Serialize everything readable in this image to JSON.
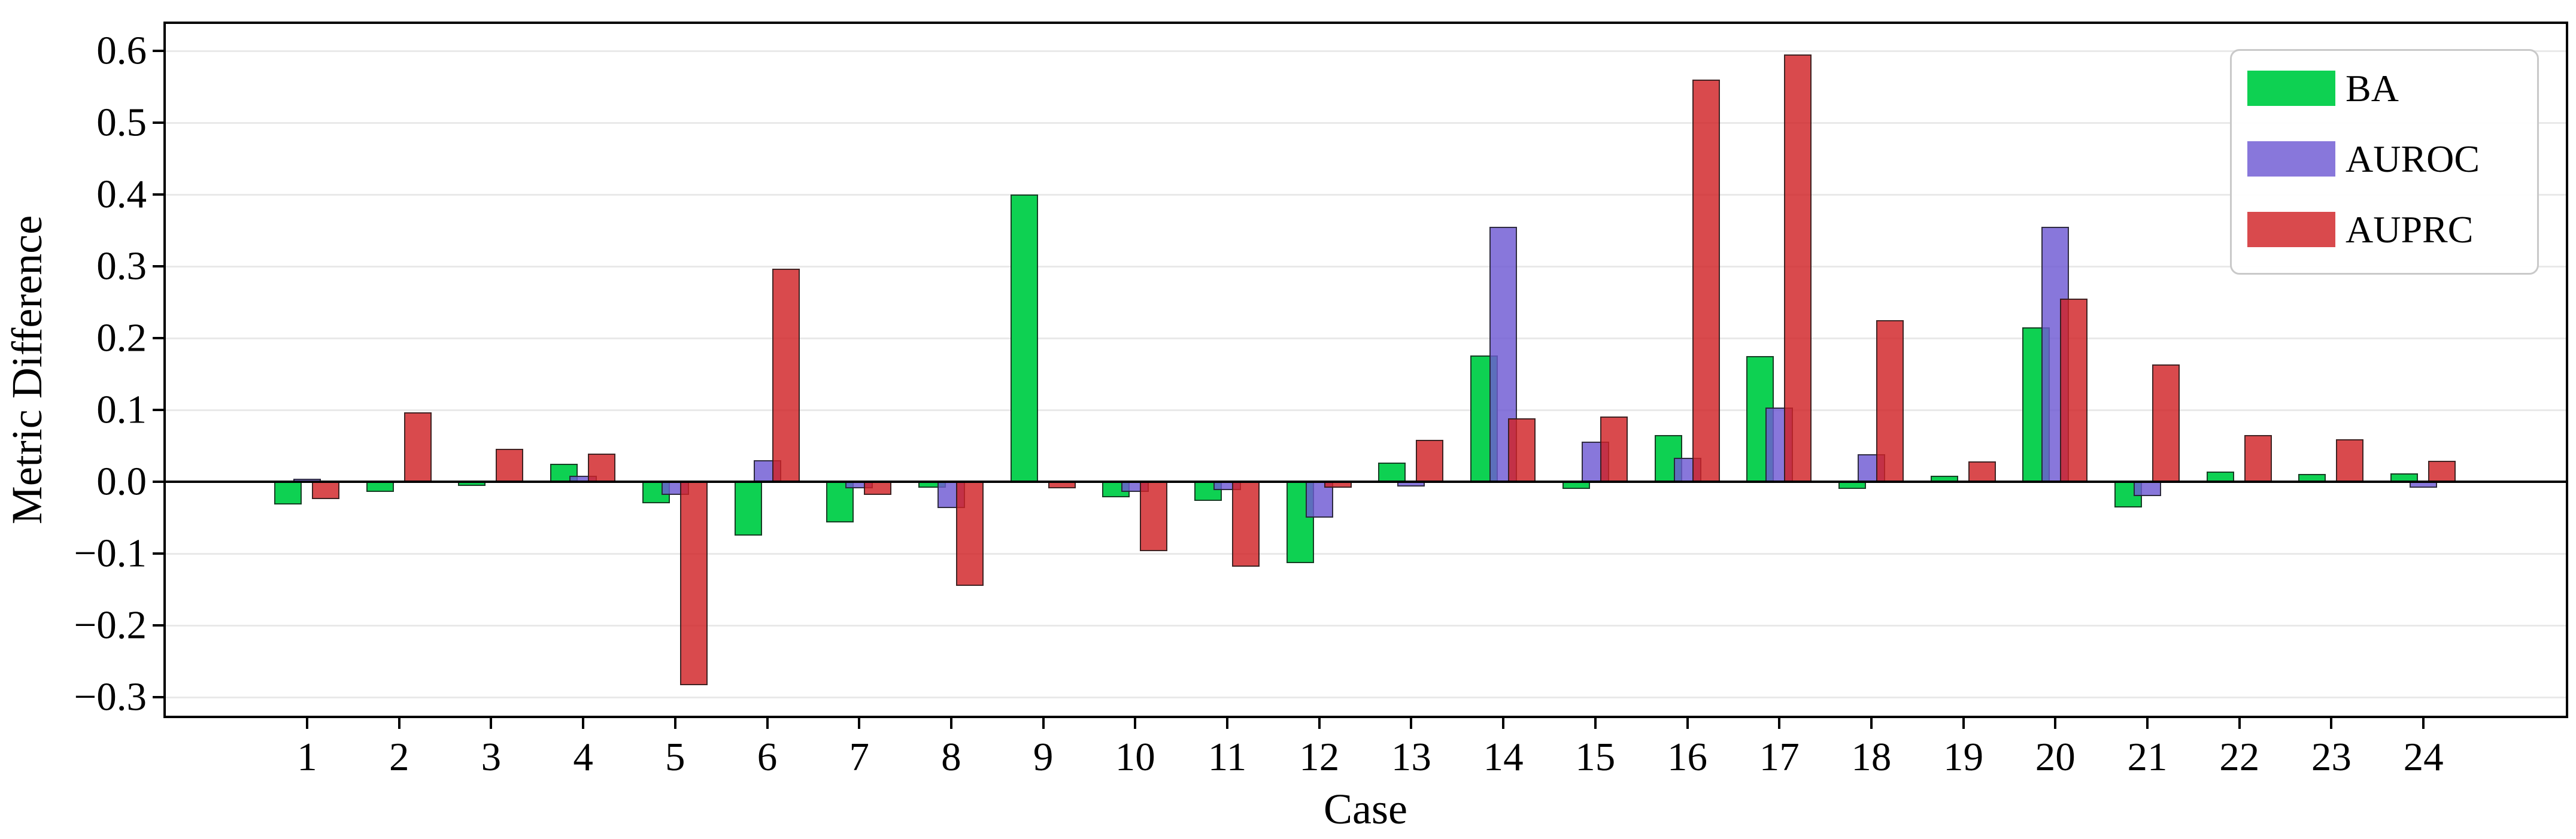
{
  "figure": {
    "background": "#ffffff",
    "xlabel": "Case",
    "ylabel": "Metric Difference"
  },
  "axis": {
    "ytick_labels": [
      "0.6",
      "0.5",
      "0.4",
      "0.3",
      "0.2",
      "0.1",
      "0.0",
      "−0.1",
      "−0.2",
      "−0.3"
    ],
    "ytick_values": [
      0.6,
      0.5,
      0.4,
      0.3,
      0.2,
      0.1,
      0.0,
      -0.1,
      -0.2,
      -0.3
    ],
    "grid_color": "#e9e9e9",
    "spine_color": "#000000",
    "zero_line_color": "#000000"
  },
  "legend": {
    "position": "upper right",
    "entries": [
      {
        "label": "BA",
        "color": "#0ED152"
      },
      {
        "label": "AUROC",
        "color": "#8877DB"
      },
      {
        "label": "AUPRC",
        "color": "#D94A4D"
      }
    ]
  },
  "chart_data": {
    "type": "bar",
    "title": "",
    "xlabel": "Case",
    "ylabel": "Metric Difference",
    "categories": [
      "1",
      "2",
      "3",
      "4",
      "5",
      "6",
      "7",
      "8",
      "9",
      "10",
      "11",
      "12",
      "13",
      "14",
      "15",
      "16",
      "17",
      "18",
      "19",
      "20",
      "21",
      "22",
      "23",
      "24"
    ],
    "series": [
      {
        "name": "BA",
        "color": "#0ED152",
        "fill": "#0ED152",
        "values": [
          -0.032,
          -0.014,
          -0.006,
          0.025,
          -0.03,
          -0.075,
          -0.057,
          -0.008,
          0.4,
          -0.022,
          -0.027,
          -0.113,
          0.027,
          0.176,
          -0.01,
          0.065,
          0.175,
          -0.01,
          0.008,
          0.215,
          -0.036,
          0.014,
          0.011,
          0.012
        ]
      },
      {
        "name": "AUROC",
        "color": "#8877DB",
        "fill": "rgba(110,89,211,0.82)",
        "values": [
          0.004,
          0.0,
          0.0,
          0.008,
          -0.018,
          0.03,
          -0.009,
          -0.037,
          0.0,
          -0.014,
          -0.012,
          -0.05,
          -0.007,
          0.355,
          0.056,
          0.033,
          0.103,
          0.038,
          0.0,
          0.355,
          -0.02,
          0.0,
          0.0,
          -0.008
        ]
      },
      {
        "name": "AUPRC",
        "color": "#D94A4D",
        "fill": "rgba(209,34,38,0.82)",
        "values": [
          -0.024,
          0.097,
          0.046,
          0.039,
          -0.283,
          0.297,
          -0.018,
          -0.145,
          -0.009,
          -0.097,
          -0.118,
          -0.008,
          0.058,
          0.088,
          0.091,
          0.56,
          0.595,
          0.225,
          0.028,
          0.255,
          0.163,
          0.065,
          0.059,
          0.029
        ]
      }
    ],
    "ylim": [
      -0.326,
      0.635
    ],
    "yticks": [
      0.6,
      0.5,
      0.4,
      0.3,
      0.2,
      0.1,
      0.0,
      -0.1,
      -0.2,
      -0.3
    ],
    "grid": "horizontal",
    "legend_position": "upper right"
  }
}
